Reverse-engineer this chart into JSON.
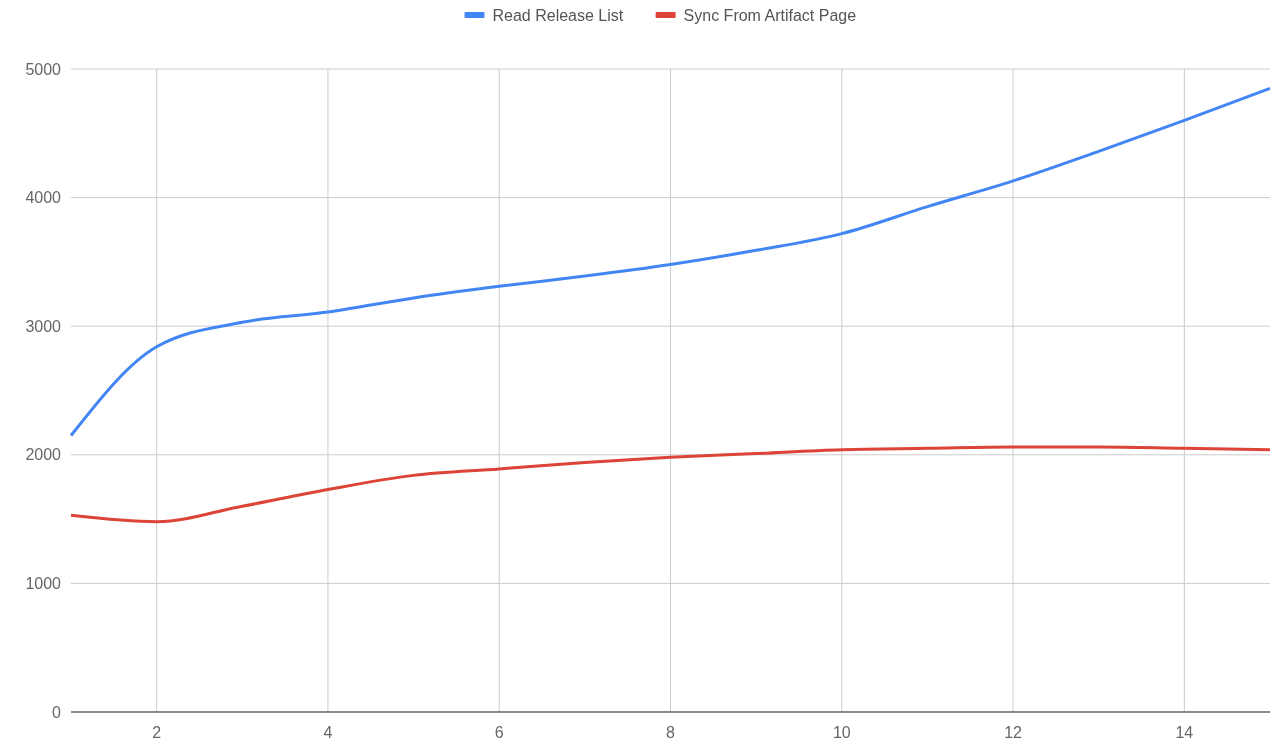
{
  "chart_data": {
    "type": "line",
    "x": [
      1,
      2,
      3,
      4,
      5,
      6,
      7,
      8,
      9,
      10,
      11,
      12,
      13,
      14,
      15
    ],
    "series": [
      {
        "name": "Read Release List",
        "color": "#4285f4",
        "values": [
          2150,
          2840,
          3030,
          3110,
          3220,
          3310,
          3390,
          3480,
          3590,
          3720,
          3930,
          4130,
          4360,
          4600,
          4850
        ]
      },
      {
        "name": "Sync From Artifact Page",
        "color": "#db4437",
        "values": [
          1530,
          1480,
          1600,
          1730,
          1840,
          1890,
          1940,
          1980,
          2010,
          2040,
          2050,
          2060,
          2060,
          2050,
          2040
        ]
      }
    ],
    "xlim": [
      1,
      15
    ],
    "xticks": [
      2,
      4,
      6,
      8,
      10,
      12,
      14
    ],
    "ylim": [
      0,
      5000
    ],
    "yticks": [
      0,
      1000,
      2000,
      3000,
      4000,
      5000
    ],
    "grid": true,
    "legend": "top",
    "marker": "none",
    "line_style": "solid"
  }
}
